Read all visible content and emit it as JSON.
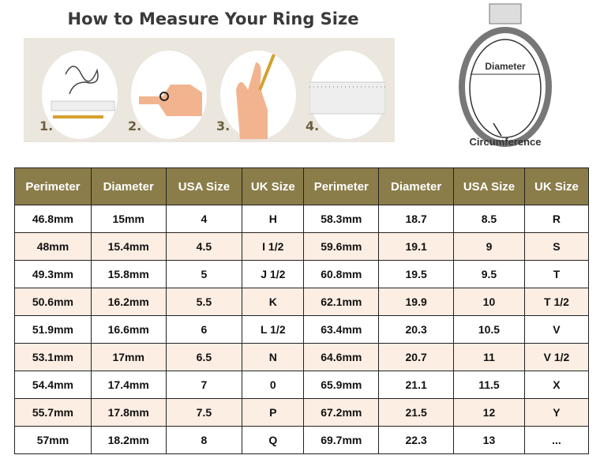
{
  "title": "How to Measure Your Ring Size",
  "steps": [
    "1.",
    "2.",
    "3.",
    "4."
  ],
  "ring_labels": {
    "diameter": "Diameter",
    "circumference": "Circumference"
  },
  "colors": {
    "header": "#8b7d4a",
    "alt_row": "#fdeee3",
    "panel": "#ebe6de"
  },
  "table": {
    "headers": [
      "Perimeter",
      "Diameter",
      "USA Size",
      "UK Size",
      "Perimeter",
      "Diameter",
      "USA Size",
      "UK Size"
    ],
    "rows": [
      [
        "46.8mm",
        "15mm",
        "4",
        "H",
        "58.3mm",
        "18.7",
        "8.5",
        "R"
      ],
      [
        "48mm",
        "15.4mm",
        "4.5",
        "I 1/2",
        "59.6mm",
        "19.1",
        "9",
        "S"
      ],
      [
        "49.3mm",
        "15.8mm",
        "5",
        "J 1/2",
        "60.8mm",
        "19.5",
        "9.5",
        "T"
      ],
      [
        "50.6mm",
        "16.2mm",
        "5.5",
        "K",
        "62.1mm",
        "19.9",
        "10",
        "T 1/2"
      ],
      [
        "51.9mm",
        "16.6mm",
        "6",
        "L 1/2",
        "63.4mm",
        "20.3",
        "10.5",
        "V"
      ],
      [
        "53.1mm",
        "17mm",
        "6.5",
        "N",
        "64.6mm",
        "20.7",
        "11",
        "V 1/2"
      ],
      [
        "54.4mm",
        "17.4mm",
        "7",
        "0",
        "65.9mm",
        "21.1",
        "11.5",
        "X"
      ],
      [
        "55.7mm",
        "17.8mm",
        "7.5",
        "P",
        "67.2mm",
        "21.5",
        "12",
        "Y"
      ],
      [
        "57mm",
        "18.2mm",
        "8",
        "Q",
        "69.7mm",
        "22.3",
        "13",
        "..."
      ]
    ]
  }
}
